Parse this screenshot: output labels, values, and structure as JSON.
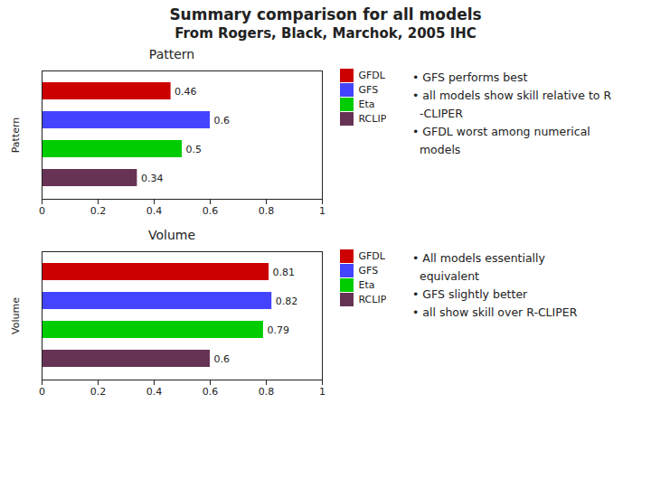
{
  "title": "Summary comparison for all models",
  "subtitle": "From Rogers, Black, Marchok, 2005 IHC",
  "chart_data": [
    {
      "type": "bar",
      "title": "Pattern",
      "orientation": "horizontal",
      "categories": [
        "GFDL",
        "GFS",
        "Eta",
        "RCLIP"
      ],
      "values": [
        0.46,
        0.6,
        0.5,
        0.34
      ],
      "colors": [
        "#cc0000",
        "#4444ff",
        "#00cc00",
        "#663355"
      ],
      "y_label": "Pattern",
      "xlim": [
        0,
        1
      ],
      "xticks": [
        0,
        0.2,
        0.4,
        0.6,
        0.8,
        1
      ],
      "grid": false,
      "legend": "right",
      "data_labels": true,
      "tick_labels": "x",
      "annotations": [
        "• GFS performs best\n• all models show skill relative to R\n  -CLIPER\n• GFDL worst among numerical\n  models"
      ]
    },
    {
      "type": "bar",
      "title": "Volume",
      "orientation": "horizontal",
      "categories": [
        "GFDL",
        "GFS",
        "Eta",
        "RCLIP"
      ],
      "values": [
        0.81,
        0.82,
        0.79,
        0.6
      ],
      "colors": [
        "#cc0000",
        "#4444ff",
        "#00cc00",
        "#663355"
      ],
      "y_label": "Volume",
      "xlim": [
        0,
        1
      ],
      "xticks": [
        0,
        0.2,
        0.4,
        0.6,
        0.8,
        1
      ],
      "grid": false,
      "legend": "right",
      "data_labels": true,
      "tick_labels": "x",
      "annotations": [
        "• All models essentially\n  equivalent\n• GFS slightly better\n• all show skill over R-CLIPER"
      ]
    }
  ]
}
